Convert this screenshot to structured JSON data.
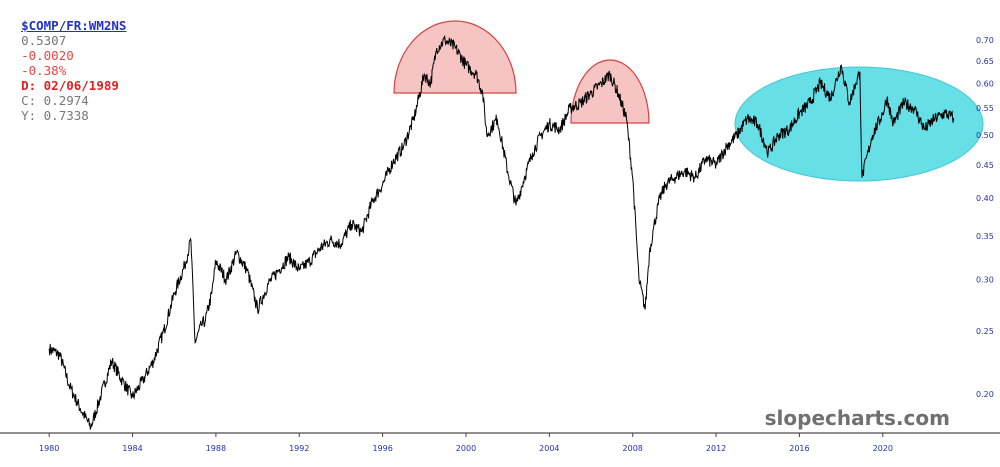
{
  "header": {
    "symbol": "$COMP/FR:WM2NS",
    "last": "0.5307",
    "change": "-0.0020",
    "change_pct": "-0.38%",
    "date_text": "D: 02/06/1989",
    "close_text": "C: 0.2974",
    "y_text": "Y: 0.7338"
  },
  "watermark": "slopecharts.com",
  "colors": {
    "line": "#000000",
    "hump": "#f7c4c4",
    "hump_stroke": "#d94040",
    "oval": "#66dfe6"
  },
  "chart_data": {
    "type": "line",
    "title": "$COMP/FR:WM2NS",
    "y_scale": "log",
    "ylim": [
      0.175,
      0.73
    ],
    "xlim": [
      1979.8,
      2023.8
    ],
    "y_ticks": [
      "0.70",
      "0.65",
      "0.60",
      "0.55",
      "0.50",
      "0.45",
      "0.40",
      "0.35",
      "0.30",
      "0.25",
      "0.20"
    ],
    "x_ticks": [
      "1980",
      "1984",
      "1988",
      "1992",
      "1996",
      "2000",
      "2004",
      "2008",
      "2012",
      "2016",
      "2020"
    ],
    "series": [
      {
        "x": [
          1980.0,
          1980.5,
          1981.0,
          1981.5,
          1982.0,
          1982.5,
          1983.0,
          1983.5,
          1984.0,
          1984.5,
          1985.0,
          1985.5,
          1986.0,
          1986.5,
          1986.8,
          1987.0,
          1987.3,
          1987.5,
          1987.8,
          1988.0,
          1988.5,
          1989.0,
          1989.5,
          1990.0,
          1990.5,
          1991.0,
          1991.5,
          1992.0,
          1992.5,
          1993.0,
          1993.5,
          1994.0,
          1994.5,
          1995.0,
          1995.5,
          1996.0,
          1996.5,
          1997.0,
          1997.5,
          1998.0,
          1998.3,
          1998.6,
          1999.0,
          1999.5,
          2000.0,
          2000.5,
          2000.8,
          2001.0,
          2001.5,
          2002.0,
          2002.4,
          2002.8,
          2003.2,
          2003.6,
          2004.0,
          2004.5,
          2005.0,
          2005.5,
          2006.0,
          2006.5,
          2006.9,
          2007.3,
          2007.7,
          2008.0,
          2008.3,
          2008.6,
          2008.8,
          2009.0,
          2009.3,
          2009.6,
          2010.0,
          2010.5,
          2011.0,
          2011.5,
          2012.0,
          2012.5,
          2013.0,
          2013.5,
          2014.0,
          2014.5,
          2015.0,
          2015.5,
          2016.0,
          2016.5,
          2017.0,
          2017.5,
          2018.0,
          2018.4,
          2018.7,
          2018.9,
          2019.0,
          2019.5,
          2020.0,
          2020.2,
          2020.5,
          2021.0,
          2021.5,
          2022.0,
          2022.5,
          2023.0,
          2023.4
        ],
        "y": [
          0.235,
          0.23,
          0.205,
          0.19,
          0.178,
          0.2,
          0.225,
          0.21,
          0.198,
          0.21,
          0.225,
          0.25,
          0.285,
          0.315,
          0.345,
          0.24,
          0.255,
          0.26,
          0.285,
          0.32,
          0.3,
          0.33,
          0.31,
          0.27,
          0.295,
          0.31,
          0.325,
          0.31,
          0.32,
          0.335,
          0.345,
          0.34,
          0.365,
          0.355,
          0.395,
          0.42,
          0.455,
          0.48,
          0.53,
          0.62,
          0.6,
          0.68,
          0.7,
          0.68,
          0.64,
          0.62,
          0.58,
          0.5,
          0.53,
          0.44,
          0.39,
          0.43,
          0.47,
          0.5,
          0.52,
          0.51,
          0.55,
          0.56,
          0.58,
          0.6,
          0.62,
          0.58,
          0.53,
          0.43,
          0.3,
          0.27,
          0.33,
          0.36,
          0.4,
          0.42,
          0.43,
          0.44,
          0.43,
          0.46,
          0.45,
          0.48,
          0.5,
          0.53,
          0.52,
          0.47,
          0.5,
          0.51,
          0.54,
          0.56,
          0.6,
          0.57,
          0.64,
          0.56,
          0.6,
          0.625,
          0.43,
          0.5,
          0.54,
          0.57,
          0.52,
          0.56,
          0.55,
          0.51,
          0.53,
          0.54,
          0.531
        ]
      }
    ]
  }
}
